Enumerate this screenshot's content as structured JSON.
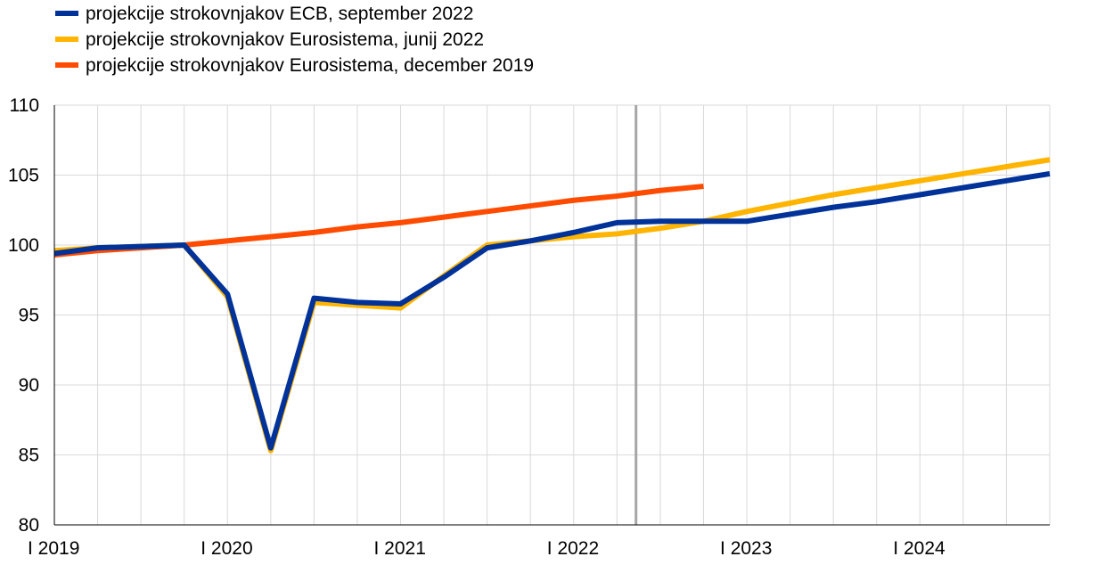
{
  "chart_data": {
    "type": "line",
    "title": "",
    "xlabel": "",
    "ylabel": "",
    "ylim": [
      80,
      110
    ],
    "yticks": [
      80,
      85,
      90,
      95,
      100,
      105,
      110
    ],
    "x": [
      2019.0,
      2019.25,
      2019.5,
      2019.75,
      2020.0,
      2020.25,
      2020.5,
      2020.75,
      2021.0,
      2021.25,
      2021.5,
      2021.75,
      2022.0,
      2022.25,
      2022.5,
      2022.75,
      2023.0,
      2023.25,
      2023.5,
      2023.75,
      2024.0,
      2024.25,
      2024.5,
      2024.75
    ],
    "xlim": [
      2019.0,
      2024.75
    ],
    "xtick_labels": [
      "I 2019",
      "I 2020",
      "I 2021",
      "I 2022",
      "I 2023",
      "I 2024"
    ],
    "xtick_positions": [
      2019,
      2020,
      2021,
      2022,
      2023,
      2024
    ],
    "vline_x": 2022.36,
    "grid": true,
    "legend_position": "top-left",
    "series": [
      {
        "name": "projekcije strokovnjakov Eurosistema, december 2019",
        "color": "#ff4b00",
        "values": [
          99.3,
          99.6,
          99.8,
          100.0,
          100.3,
          100.6,
          100.9,
          101.3,
          101.6,
          102.0,
          102.4,
          102.8,
          103.2,
          103.5,
          103.9,
          104.2,
          null,
          null,
          null,
          null,
          null,
          null,
          null,
          null
        ]
      },
      {
        "name": "projekcije strokovnjakov Eurosistema, junij 2022",
        "color": "#ffb400",
        "values": [
          99.6,
          99.8,
          99.9,
          100.0,
          96.3,
          85.3,
          95.9,
          95.7,
          95.5,
          97.8,
          100.0,
          100.3,
          100.6,
          100.8,
          101.2,
          101.7,
          102.4,
          103.0,
          103.6,
          104.1,
          104.6,
          105.1,
          105.6,
          106.1
        ]
      },
      {
        "name": "projekcije strokovnjakov ECB, september 2022",
        "color": "#003299",
        "values": [
          99.4,
          99.8,
          99.9,
          100.0,
          96.5,
          85.5,
          96.2,
          95.9,
          95.8,
          97.7,
          99.8,
          100.3,
          100.9,
          101.6,
          101.7,
          101.7,
          101.7,
          102.2,
          102.7,
          103.1,
          103.6,
          104.1,
          104.6,
          105.1
        ]
      }
    ],
    "legend_order": [
      2,
      1,
      0
    ]
  }
}
